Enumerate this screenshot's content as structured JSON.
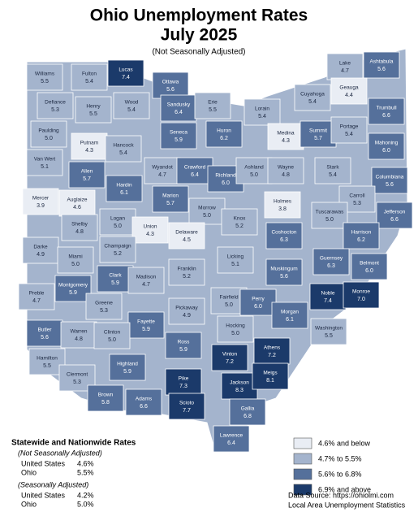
{
  "title": "Ohio Unemployment Rates",
  "subtitle": "July 2025",
  "note": "(Not Seasonally Adjusted)",
  "counties": [
    {
      "name": "Williams",
      "rate": "5.5",
      "color": "#a4b4cd"
    },
    {
      "name": "Fulton",
      "rate": "5.4",
      "color": "#a4b4cd"
    },
    {
      "name": "Lucas",
      "rate": "7.4",
      "color": "#1b3a6a"
    },
    {
      "name": "Ottawa",
      "rate": "5.6",
      "color": "#55709b"
    },
    {
      "name": "Lake",
      "rate": "4.7",
      "color": "#a4b4cd"
    },
    {
      "name": "Ashtabula",
      "rate": "5.6",
      "color": "#55709b"
    },
    {
      "name": "Geauga",
      "rate": "4.4",
      "color": "#e9edf4"
    },
    {
      "name": "Cuyahoga",
      "rate": "5.4",
      "color": "#a4b4cd"
    },
    {
      "name": "Defiance",
      "rate": "5.3",
      "color": "#a4b4cd"
    },
    {
      "name": "Henry",
      "rate": "5.5",
      "color": "#a4b4cd"
    },
    {
      "name": "Wood",
      "rate": "5.4",
      "color": "#a4b4cd"
    },
    {
      "name": "Sandusky",
      "rate": "6.4",
      "color": "#55709b"
    },
    {
      "name": "Erie",
      "rate": "5.5",
      "color": "#a4b4cd"
    },
    {
      "name": "Lorain",
      "rate": "5.4",
      "color": "#a4b4cd"
    },
    {
      "name": "Trumbull",
      "rate": "6.6",
      "color": "#55709b"
    },
    {
      "name": "Paulding",
      "rate": "5.0",
      "color": "#a4b4cd"
    },
    {
      "name": "Putnam",
      "rate": "4.3",
      "color": "#e9edf4"
    },
    {
      "name": "Hancock",
      "rate": "5.4",
      "color": "#a4b4cd"
    },
    {
      "name": "Seneca",
      "rate": "5.9",
      "color": "#55709b"
    },
    {
      "name": "Huron",
      "rate": "6.2",
      "color": "#55709b"
    },
    {
      "name": "Medina",
      "rate": "4.3",
      "color": "#e9edf4"
    },
    {
      "name": "Summit",
      "rate": "5.7",
      "color": "#55709b"
    },
    {
      "name": "Portage",
      "rate": "5.4",
      "color": "#a4b4cd"
    },
    {
      "name": "Mahoning",
      "rate": "6.0",
      "color": "#55709b"
    },
    {
      "name": "Van Wert",
      "rate": "5.1",
      "color": "#a4b4cd"
    },
    {
      "name": "Allen",
      "rate": "5.7",
      "color": "#55709b"
    },
    {
      "name": "Hardin",
      "rate": "6.1",
      "color": "#55709b"
    },
    {
      "name": "Wyandot",
      "rate": "4.7",
      "color": "#a4b4cd"
    },
    {
      "name": "Crawford",
      "rate": "6.4",
      "color": "#55709b"
    },
    {
      "name": "Richland",
      "rate": "6.0",
      "color": "#55709b"
    },
    {
      "name": "Ashland",
      "rate": "5.0",
      "color": "#a4b4cd"
    },
    {
      "name": "Wayne",
      "rate": "4.8",
      "color": "#a4b4cd"
    },
    {
      "name": "Stark",
      "rate": "5.4",
      "color": "#a4b4cd"
    },
    {
      "name": "Columbiana",
      "rate": "5.6",
      "color": "#55709b"
    },
    {
      "name": "Mercer",
      "rate": "3.9",
      "color": "#e9edf4"
    },
    {
      "name": "Auglaize",
      "rate": "4.6",
      "color": "#e9edf4"
    },
    {
      "name": "Marion",
      "rate": "5.7",
      "color": "#55709b"
    },
    {
      "name": "Morrow",
      "rate": "5.0",
      "color": "#a4b4cd"
    },
    {
      "name": "Holmes",
      "rate": "3.8",
      "color": "#e9edf4"
    },
    {
      "name": "Carroll",
      "rate": "5.3",
      "color": "#a4b4cd"
    },
    {
      "name": "Tuscarawas",
      "rate": "5.0",
      "color": "#a4b4cd"
    },
    {
      "name": "Jefferson",
      "rate": "6.6",
      "color": "#55709b"
    },
    {
      "name": "Shelby",
      "rate": "4.8",
      "color": "#a4b4cd"
    },
    {
      "name": "Logan",
      "rate": "5.0",
      "color": "#a4b4cd"
    },
    {
      "name": "Union",
      "rate": "4.3",
      "color": "#e9edf4"
    },
    {
      "name": "Delaware",
      "rate": "4.5",
      "color": "#e9edf4"
    },
    {
      "name": "Knox",
      "rate": "5.2",
      "color": "#a4b4cd"
    },
    {
      "name": "Coshocton",
      "rate": "6.3",
      "color": "#55709b"
    },
    {
      "name": "Harrison",
      "rate": "6.2",
      "color": "#55709b"
    },
    {
      "name": "Darke",
      "rate": "4.9",
      "color": "#a4b4cd"
    },
    {
      "name": "Champaign",
      "rate": "5.2",
      "color": "#a4b4cd"
    },
    {
      "name": "Miami",
      "rate": "5.0",
      "color": "#a4b4cd"
    },
    {
      "name": "Licking",
      "rate": "5.1",
      "color": "#a4b4cd"
    },
    {
      "name": "Guernsey",
      "rate": "6.3",
      "color": "#55709b"
    },
    {
      "name": "Belmont",
      "rate": "6.0",
      "color": "#55709b"
    },
    {
      "name": "Clark",
      "rate": "5.9",
      "color": "#55709b"
    },
    {
      "name": "Madison",
      "rate": "4.7",
      "color": "#a4b4cd"
    },
    {
      "name": "Franklin",
      "rate": "5.2",
      "color": "#a4b4cd"
    },
    {
      "name": "Muskingum",
      "rate": "5.6",
      "color": "#55709b"
    },
    {
      "name": "Preble",
      "rate": "4.7",
      "color": "#a4b4cd"
    },
    {
      "name": "Montgomery",
      "rate": "5.9",
      "color": "#55709b"
    },
    {
      "name": "Greene",
      "rate": "5.3",
      "color": "#a4b4cd"
    },
    {
      "name": "Fayette",
      "rate": "5.9",
      "color": "#55709b"
    },
    {
      "name": "Pickaway",
      "rate": "4.9",
      "color": "#a4b4cd"
    },
    {
      "name": "Fairfield",
      "rate": "5.0",
      "color": "#a4b4cd"
    },
    {
      "name": "Perry",
      "rate": "6.0",
      "color": "#55709b"
    },
    {
      "name": "Noble",
      "rate": "7.4",
      "color": "#1b3a6a"
    },
    {
      "name": "Monroe",
      "rate": "7.0",
      "color": "#1b3a6a"
    },
    {
      "name": "Morgan",
      "rate": "6.1",
      "color": "#55709b"
    },
    {
      "name": "Butler",
      "rate": "5.6",
      "color": "#55709b"
    },
    {
      "name": "Warren",
      "rate": "4.8",
      "color": "#a4b4cd"
    },
    {
      "name": "Clinton",
      "rate": "5.0",
      "color": "#a4b4cd"
    },
    {
      "name": "Ross",
      "rate": "5.9",
      "color": "#55709b"
    },
    {
      "name": "Hocking",
      "rate": "5.0",
      "color": "#a4b4cd"
    },
    {
      "name": "Washington",
      "rate": "5.5",
      "color": "#a4b4cd"
    },
    {
      "name": "Athens",
      "rate": "7.2",
      "color": "#1b3a6a"
    },
    {
      "name": "Vinton",
      "rate": "7.2",
      "color": "#1b3a6a"
    },
    {
      "name": "Hamilton",
      "rate": "5.5",
      "color": "#a4b4cd"
    },
    {
      "name": "Highland",
      "rate": "5.9",
      "color": "#55709b"
    },
    {
      "name": "Clermont",
      "rate": "5.3",
      "color": "#a4b4cd"
    },
    {
      "name": "Pike",
      "rate": "7.3",
      "color": "#1b3a6a"
    },
    {
      "name": "Jackson",
      "rate": "8.3",
      "color": "#1b3a6a"
    },
    {
      "name": "Meigs",
      "rate": "8.1",
      "color": "#1b3a6a"
    },
    {
      "name": "Brown",
      "rate": "5.8",
      "color": "#55709b"
    },
    {
      "name": "Adams",
      "rate": "6.6",
      "color": "#55709b"
    },
    {
      "name": "Scioto",
      "rate": "7.7",
      "color": "#1b3a6a"
    },
    {
      "name": "Gallia",
      "rate": "6.8",
      "color": "#55709b"
    },
    {
      "name": "Lawrence",
      "rate": "6.4",
      "color": "#55709b"
    }
  ],
  "rates": {
    "title": "Statewide and Nationwide Rates",
    "groups": [
      {
        "heading": "(Not Seasonally Adjusted)",
        "rows": [
          [
            "United States",
            "4.6%"
          ],
          [
            "Ohio",
            "5.5%"
          ]
        ]
      },
      {
        "heading": "(Seasonally Adjusted)",
        "rows": [
          [
            "United States",
            "4.2%"
          ],
          [
            "Ohio",
            "5.0%"
          ]
        ]
      }
    ]
  },
  "legend": [
    {
      "label": "4.6% and below",
      "color": "#e9edf4"
    },
    {
      "label": "4.7% to 5.5%",
      "color": "#a4b4cd"
    },
    {
      "label": "5.6% to 6.8%",
      "color": "#55709b"
    },
    {
      "label": "6.9% and above",
      "color": "#1b3a6a"
    }
  ],
  "source": [
    "Data Source: https://ohiolmi.com",
    "Local Area Unemployment Statistics"
  ]
}
